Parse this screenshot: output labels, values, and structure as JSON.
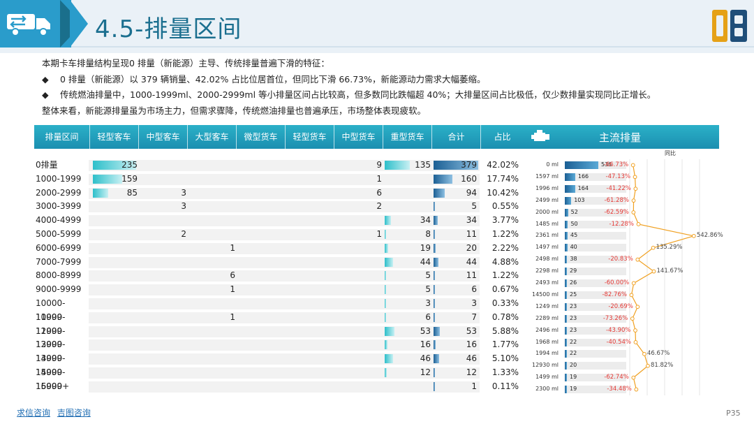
{
  "title": "4.5-排量区间",
  "intro": "本期卡车排量结构呈现0 排量（新能源）主导、传统排量普遍下滑的特征：",
  "bullets": [
    "0 排量（新能源）以 379 辆销量、42.02% 占比位居首位，但同比下滑 66.73%，新能源动力需求大幅萎缩。",
    "传统燃油排量中，1000-1999ml、2000-2999ml  等小排量区间占比较高，但多数同比跌幅超 40%；大排量区间占比极低，仅少数排量实现同比正增长。"
  ],
  "conclusion": "整体来看，新能源排量虽为市场主力，但需求骤降，传统燃油排量也普遍承压，市场整体表现疲软。",
  "bullet_symbol": "◆",
  "table": {
    "headers": [
      "排量区间",
      "轻型客车",
      "中型客车",
      "大型客车",
      "微型货车",
      "轻型货车",
      "中型货车",
      "重型货车",
      "合计",
      "占比"
    ],
    "rows": [
      {
        "label": "0排量",
        "light_bus": "235",
        "mid_bus": "",
        "big_bus": "",
        "mini_truck": "",
        "light_truck": "",
        "mid_truck": "9",
        "heavy_truck": "135",
        "total": "379",
        "share": "42.02%"
      },
      {
        "label": "1000-1999",
        "light_bus": "159",
        "mid_bus": "",
        "big_bus": "",
        "mini_truck": "",
        "light_truck": "",
        "mid_truck": "1",
        "heavy_truck": "",
        "total": "160",
        "share": "17.74%"
      },
      {
        "label": "2000-2999",
        "light_bus": "85",
        "mid_bus": "3",
        "big_bus": "",
        "mini_truck": "",
        "light_truck": "",
        "mid_truck": "6",
        "heavy_truck": "",
        "total": "94",
        "share": "10.42%"
      },
      {
        "label": "3000-3999",
        "light_bus": "",
        "mid_bus": "3",
        "big_bus": "",
        "mini_truck": "",
        "light_truck": "",
        "mid_truck": "2",
        "heavy_truck": "",
        "total": "5",
        "share": "0.55%"
      },
      {
        "label": "4000-4999",
        "light_bus": "",
        "mid_bus": "",
        "big_bus": "",
        "mini_truck": "",
        "light_truck": "",
        "mid_truck": "",
        "heavy_truck": "34",
        "total": "34",
        "share": "3.77%"
      },
      {
        "label": "5000-5999",
        "light_bus": "",
        "mid_bus": "2",
        "big_bus": "",
        "mini_truck": "",
        "light_truck": "",
        "mid_truck": "1",
        "heavy_truck": "8",
        "total": "11",
        "share": "1.22%"
      },
      {
        "label": "6000-6999",
        "light_bus": "",
        "mid_bus": "",
        "big_bus": "1",
        "mini_truck": "",
        "light_truck": "",
        "mid_truck": "",
        "heavy_truck": "19",
        "total": "20",
        "share": "2.22%"
      },
      {
        "label": "7000-7999",
        "light_bus": "",
        "mid_bus": "",
        "big_bus": "",
        "mini_truck": "",
        "light_truck": "",
        "mid_truck": "",
        "heavy_truck": "44",
        "total": "44",
        "share": "4.88%"
      },
      {
        "label": "8000-8999",
        "light_bus": "",
        "mid_bus": "",
        "big_bus": "6",
        "mini_truck": "",
        "light_truck": "",
        "mid_truck": "",
        "heavy_truck": "5",
        "total": "11",
        "share": "1.22%"
      },
      {
        "label": "9000-9999",
        "light_bus": "",
        "mid_bus": "",
        "big_bus": "1",
        "mini_truck": "",
        "light_truck": "",
        "mid_truck": "",
        "heavy_truck": "5",
        "total": "6",
        "share": "0.67%"
      },
      {
        "label": "10000-10999",
        "light_bus": "",
        "mid_bus": "",
        "big_bus": "",
        "mini_truck": "",
        "light_truck": "",
        "mid_truck": "",
        "heavy_truck": "3",
        "total": "3",
        "share": "0.33%"
      },
      {
        "label": "11000-11999",
        "light_bus": "",
        "mid_bus": "",
        "big_bus": "1",
        "mini_truck": "",
        "light_truck": "",
        "mid_truck": "",
        "heavy_truck": "6",
        "total": "7",
        "share": "0.78%"
      },
      {
        "label": "12000-12999",
        "light_bus": "",
        "mid_bus": "",
        "big_bus": "",
        "mini_truck": "",
        "light_truck": "",
        "mid_truck": "",
        "heavy_truck": "53",
        "total": "53",
        "share": "5.88%"
      },
      {
        "label": "13000-13999",
        "light_bus": "",
        "mid_bus": "",
        "big_bus": "",
        "mini_truck": "",
        "light_truck": "",
        "mid_truck": "",
        "heavy_truck": "16",
        "total": "16",
        "share": "1.77%"
      },
      {
        "label": "14000-14999",
        "light_bus": "",
        "mid_bus": "",
        "big_bus": "",
        "mini_truck": "",
        "light_truck": "",
        "mid_truck": "",
        "heavy_truck": "46",
        "total": "46",
        "share": "5.10%"
      },
      {
        "label": "15000-15999",
        "light_bus": "",
        "mid_bus": "",
        "big_bus": "",
        "mini_truck": "",
        "light_truck": "",
        "mid_truck": "",
        "heavy_truck": "12",
        "total": "12",
        "share": "1.33%"
      },
      {
        "label": "16000+",
        "light_bus": "",
        "mid_bus": "",
        "big_bus": "",
        "mini_truck": "",
        "light_truck": "",
        "mid_truck": "",
        "heavy_truck": "",
        "total": "1",
        "share": "0.11%"
      }
    ]
  },
  "side_panel": {
    "title": "主流排量",
    "yoy_header": "同比",
    "items": [
      {
        "displacement": "0 ml",
        "volume": 536,
        "yoy": -66.73,
        "yoy_label": "-66.73%"
      },
      {
        "displacement": "1597 ml",
        "volume": 166,
        "yoy": -47.13,
        "yoy_label": "-47.13%"
      },
      {
        "displacement": "1996 ml",
        "volume": 164,
        "yoy": -41.22,
        "yoy_label": "-41.22%"
      },
      {
        "displacement": "2499 ml",
        "volume": 103,
        "yoy": -61.28,
        "yoy_label": "-61.28%"
      },
      {
        "displacement": "2000 ml",
        "volume": 52,
        "yoy": -62.59,
        "yoy_label": "-62.59%"
      },
      {
        "displacement": "1485 ml",
        "volume": 50,
        "yoy": -12.28,
        "yoy_label": "-12.28%"
      },
      {
        "displacement": "2361 ml",
        "volume": 45,
        "yoy": 542.86,
        "yoy_label": "542.86%"
      },
      {
        "displacement": "1497 ml",
        "volume": 40,
        "yoy": 135.29,
        "yoy_label": "135.29%"
      },
      {
        "displacement": "2498 ml",
        "volume": 38,
        "yoy": -20.83,
        "yoy_label": "-20.83%"
      },
      {
        "displacement": "2298 ml",
        "volume": 29,
        "yoy": 141.67,
        "yoy_label": "141.67%"
      },
      {
        "displacement": "2493 ml",
        "volume": 26,
        "yoy": -60.0,
        "yoy_label": "-60.00%"
      },
      {
        "displacement": "14500 ml",
        "volume": 25,
        "yoy": -82.76,
        "yoy_label": "-82.76%"
      },
      {
        "displacement": "1249 ml",
        "volume": 23,
        "yoy": -20.69,
        "yoy_label": "-20.69%"
      },
      {
        "displacement": "2289 ml",
        "volume": 23,
        "yoy": -73.26,
        "yoy_label": "-73.26%"
      },
      {
        "displacement": "2496 ml",
        "volume": 23,
        "yoy": -43.9,
        "yoy_label": "-43.90%"
      },
      {
        "displacement": "1968 ml",
        "volume": 22,
        "yoy": -40.54,
        "yoy_label": "-40.54%"
      },
      {
        "displacement": "1994 ml",
        "volume": 22,
        "yoy": 46.67,
        "yoy_label": "46.67%"
      },
      {
        "displacement": "12930 ml",
        "volume": 20,
        "yoy": 81.82,
        "yoy_label": "81.82%"
      },
      {
        "displacement": "1499 ml",
        "volume": 19,
        "yoy": -62.74,
        "yoy_label": "-62.74%"
      },
      {
        "displacement": "2300 ml",
        "volume": 19,
        "yoy": -34.48,
        "yoy_label": "-34.48%"
      }
    ]
  },
  "footer": {
    "link1": "求信咨询",
    "link2": "吉图咨询",
    "page": "P35"
  },
  "colors": {
    "accent": "#1b8fb0",
    "bar_teal": "#2dbfca",
    "bar_blue": "#1b5f94",
    "negative": "#e53935",
    "line": "#f0a020"
  },
  "icons": [
    "truck-icon",
    "engine-icon",
    "brand-logo"
  ]
}
